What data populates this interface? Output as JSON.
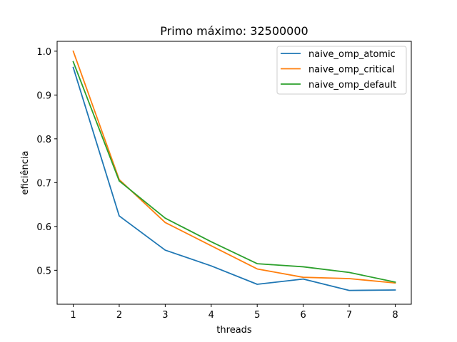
{
  "chart_data": {
    "type": "line",
    "title": "Primo máximo: 32500000",
    "xlabel": "threads",
    "ylabel": "eficiência",
    "x": [
      1,
      2,
      3,
      4,
      5,
      6,
      7,
      8
    ],
    "xticks": [
      "1",
      "2",
      "3",
      "4",
      "5",
      "6",
      "7",
      "8"
    ],
    "yticks": [
      "0.5",
      "0.6",
      "0.7",
      "0.8",
      "0.9",
      "1.0"
    ],
    "xlim": [
      0.65,
      8.35
    ],
    "ylim": [
      0.4225,
      1.0225
    ],
    "grid": false,
    "legend_position": "top-right",
    "series": [
      {
        "name": "naive_omp_atomic",
        "color": "#1f77b4",
        "values": [
          0.963,
          0.624,
          0.546,
          0.51,
          0.468,
          0.48,
          0.454,
          0.455
        ]
      },
      {
        "name": "naive_omp_critical",
        "color": "#ff7f0e",
        "values": [
          1.0,
          0.707,
          0.609,
          0.556,
          0.503,
          0.484,
          0.481,
          0.471
        ]
      },
      {
        "name": "naive_omp_default",
        "color": "#2ca02c",
        "values": [
          0.976,
          0.704,
          0.619,
          0.565,
          0.515,
          0.508,
          0.495,
          0.473
        ]
      }
    ]
  }
}
